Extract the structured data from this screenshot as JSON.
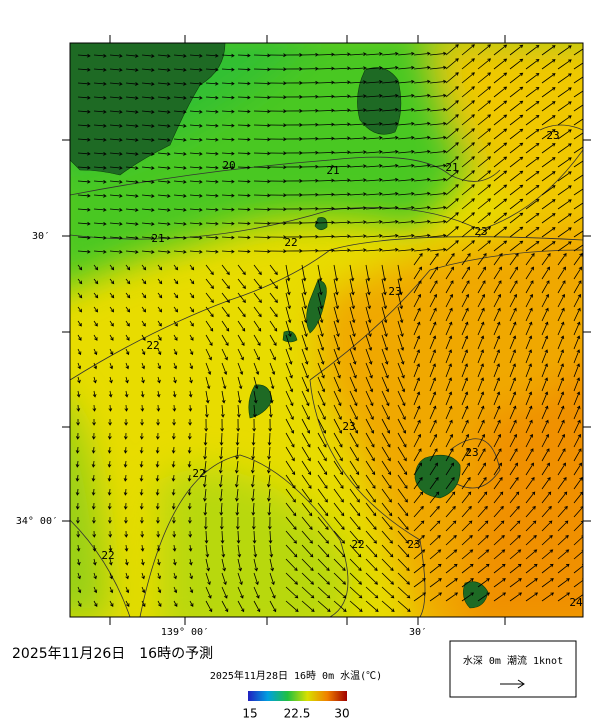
{
  "header": {
    "forecast_title": "2025年11月26日　16時の予測",
    "subtitle": "2025年11月28日 16時 0m 水温(℃)"
  },
  "axes": {
    "left": [
      "30′",
      "34° 00′"
    ],
    "bottom": [
      "139° 00′",
      "30′"
    ]
  },
  "contour_labels": [
    "20",
    "21",
    "21",
    "21",
    "22",
    "23",
    "23",
    "23",
    "22",
    "23",
    "23",
    "22",
    "22",
    "22",
    "23",
    "24"
  ],
  "colorbar": {
    "ticks": [
      "15",
      "22.5",
      "30"
    ]
  },
  "legend": {
    "label": "水深 0m 潮流 1knot"
  }
}
